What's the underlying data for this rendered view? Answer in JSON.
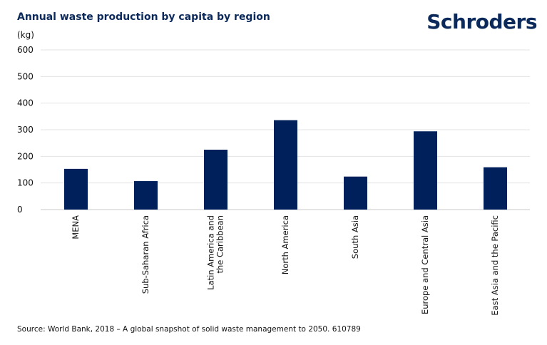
{
  "header": {
    "title": "Annual waste production by capita by region",
    "unit": "(kg)",
    "logo": "Schroders"
  },
  "footer": {
    "source": "Source: World Bank, 2018 – A global snapshot of solid waste management to 2050. 610789"
  },
  "colors": {
    "bar": "#00205b",
    "grid": "#e3e3e3"
  },
  "chart_data": {
    "type": "bar",
    "title": "Annual waste production by capita by region",
    "ylabel": "(kg)",
    "xlabel": "",
    "ylim": [
      0,
      600
    ],
    "yticks": [
      "0",
      "100",
      "200",
      "300",
      "400",
      "500",
      "600"
    ],
    "categories": [
      [
        "MENA"
      ],
      [
        "Sub-Saharan Africa"
      ],
      [
        "Latin America and",
        "the Caribbean"
      ],
      [
        "North America"
      ],
      [
        "South Asia"
      ],
      [
        "Europe and Central Asia"
      ],
      [
        "East Asia and the Pacific"
      ]
    ],
    "values": [
      153,
      107,
      225,
      336,
      124,
      294,
      159
    ],
    "grid": true
  }
}
